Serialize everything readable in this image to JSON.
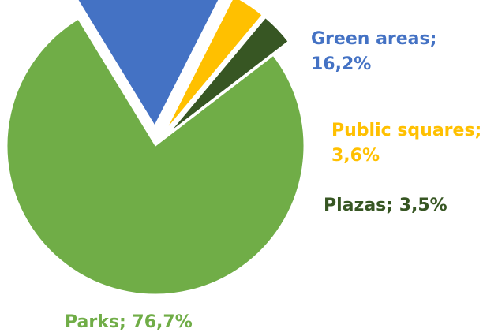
{
  "chart_data": {
    "type": "pie",
    "slices": [
      {
        "label": "Parks; 76,7%",
        "value": 76.7,
        "color": "#70ad47",
        "exploded": false
      },
      {
        "label": "Green areas; 16,2%",
        "value": 16.2,
        "color": "#4472c4",
        "exploded": true
      },
      {
        "label": "Public squares; 3,6%",
        "value": 3.6,
        "color": "#ffc000",
        "exploded": true
      },
      {
        "label": "Plazas; 3,5%",
        "value": 3.5,
        "color": "#375623",
        "exploded": true
      }
    ],
    "legend": "none"
  }
}
